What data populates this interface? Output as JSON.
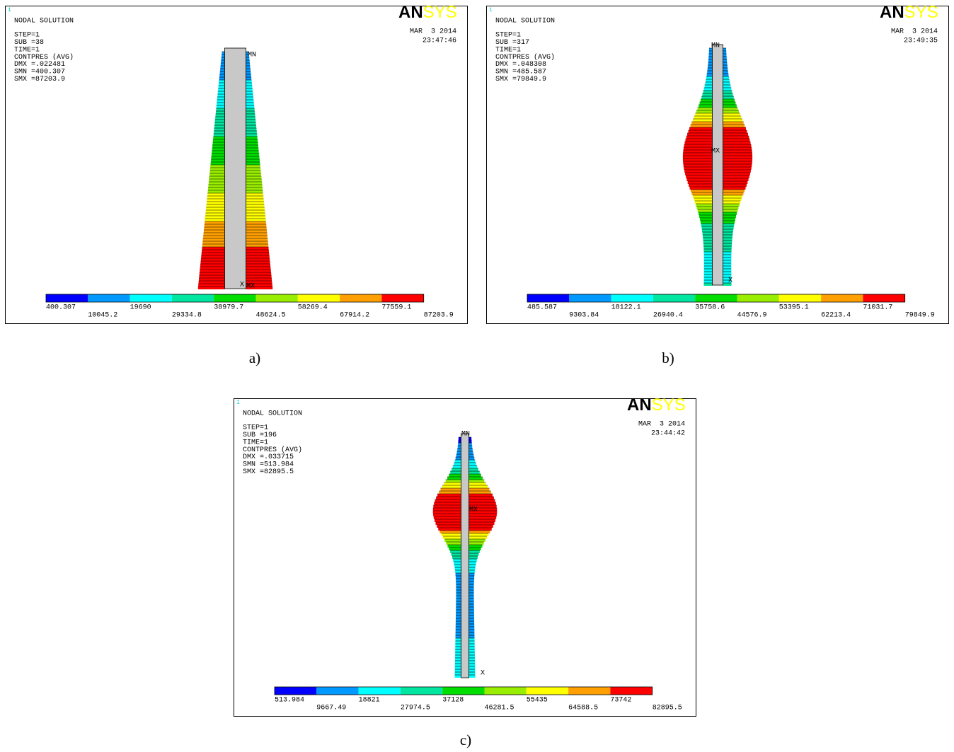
{
  "panels": [
    {
      "frame_number": "1",
      "title": "NODAL SOLUTION",
      "info": [
        "STEP=1",
        "SUB =38",
        "TIME=1",
        "CONTPRES (AVG)",
        "DMX =.022481",
        "SMN =400.307",
        "SMX =87203.9"
      ],
      "logo": [
        "AN",
        "SYS"
      ],
      "date": "MAR  3 2014",
      "time": "23:47:46",
      "markers": [
        "MN",
        "MX",
        "X"
      ],
      "legend": [
        "400.307",
        "10045.2",
        "19690",
        "29334.8",
        "38979.7",
        "48624.5",
        "58269.4",
        "67914.2",
        "77559.1",
        "87203.9"
      ],
      "caption": "a)"
    },
    {
      "frame_number": "1",
      "title": "NODAL SOLUTION",
      "info": [
        "STEP=1",
        "SUB =317",
        "TIME=1",
        "CONTPRES (AVG)",
        "DMX =.048308",
        "SMN =485.587",
        "SMX =79849.9"
      ],
      "logo": [
        "AN",
        "SYS"
      ],
      "date": "MAR  3 2014",
      "time": "23:49:35",
      "markers": [
        "MN",
        "MX",
        "X"
      ],
      "legend": [
        "485.587",
        "9303.84",
        "18122.1",
        "26940.4",
        "35758.6",
        "44576.9",
        "53395.1",
        "62213.4",
        "71031.7",
        "79849.9"
      ],
      "caption": "b)"
    },
    {
      "frame_number": "1",
      "title": "NODAL SOLUTION",
      "info": [
        "STEP=1",
        "SUB =196",
        "TIME=1",
        "CONTPRES (AVG)",
        "DMX =.033715",
        "SMN =513.984",
        "SMX =82895.5"
      ],
      "logo": [
        "AN",
        "SYS"
      ],
      "date": "MAR  3 2014",
      "time": "23:44:42",
      "markers": [
        "MN",
        "MX",
        "X"
      ],
      "legend": [
        "513.984",
        "9667.49",
        "18821",
        "27974.5",
        "37128",
        "46281.5",
        "55435",
        "64588.5",
        "73742",
        "82895.5"
      ],
      "caption": "c)"
    }
  ]
}
